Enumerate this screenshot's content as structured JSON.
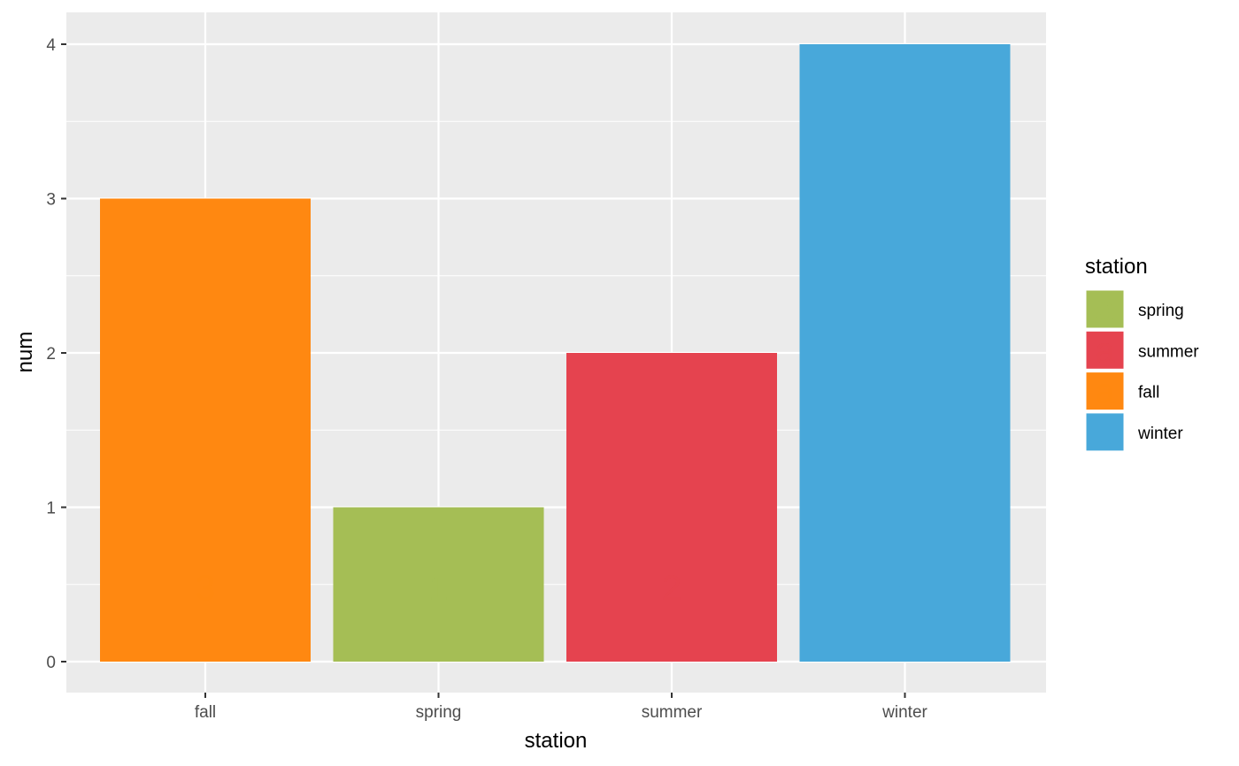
{
  "chart_data": {
    "type": "bar",
    "categories": [
      "fall",
      "spring",
      "summer",
      "winter"
    ],
    "values": [
      3,
      1,
      2,
      4
    ],
    "bar_labels": [
      "3",
      "1",
      "2",
      "4"
    ],
    "colors": {
      "fall": "#FF8811",
      "spring": "#A5BE55",
      "summer": "#E5434F",
      "winter": "#48A8DA"
    },
    "xlabel": "station",
    "ylabel": "num",
    "ylim": [
      -0.2,
      4.2
    ],
    "yticks": [
      0,
      1,
      2,
      3,
      4
    ],
    "grid": true,
    "panel_background": "#EBEBEB",
    "legend": {
      "title": "station",
      "position": "right",
      "items": [
        "spring",
        "summer",
        "fall",
        "winter"
      ],
      "key_glyph": "a"
    }
  }
}
